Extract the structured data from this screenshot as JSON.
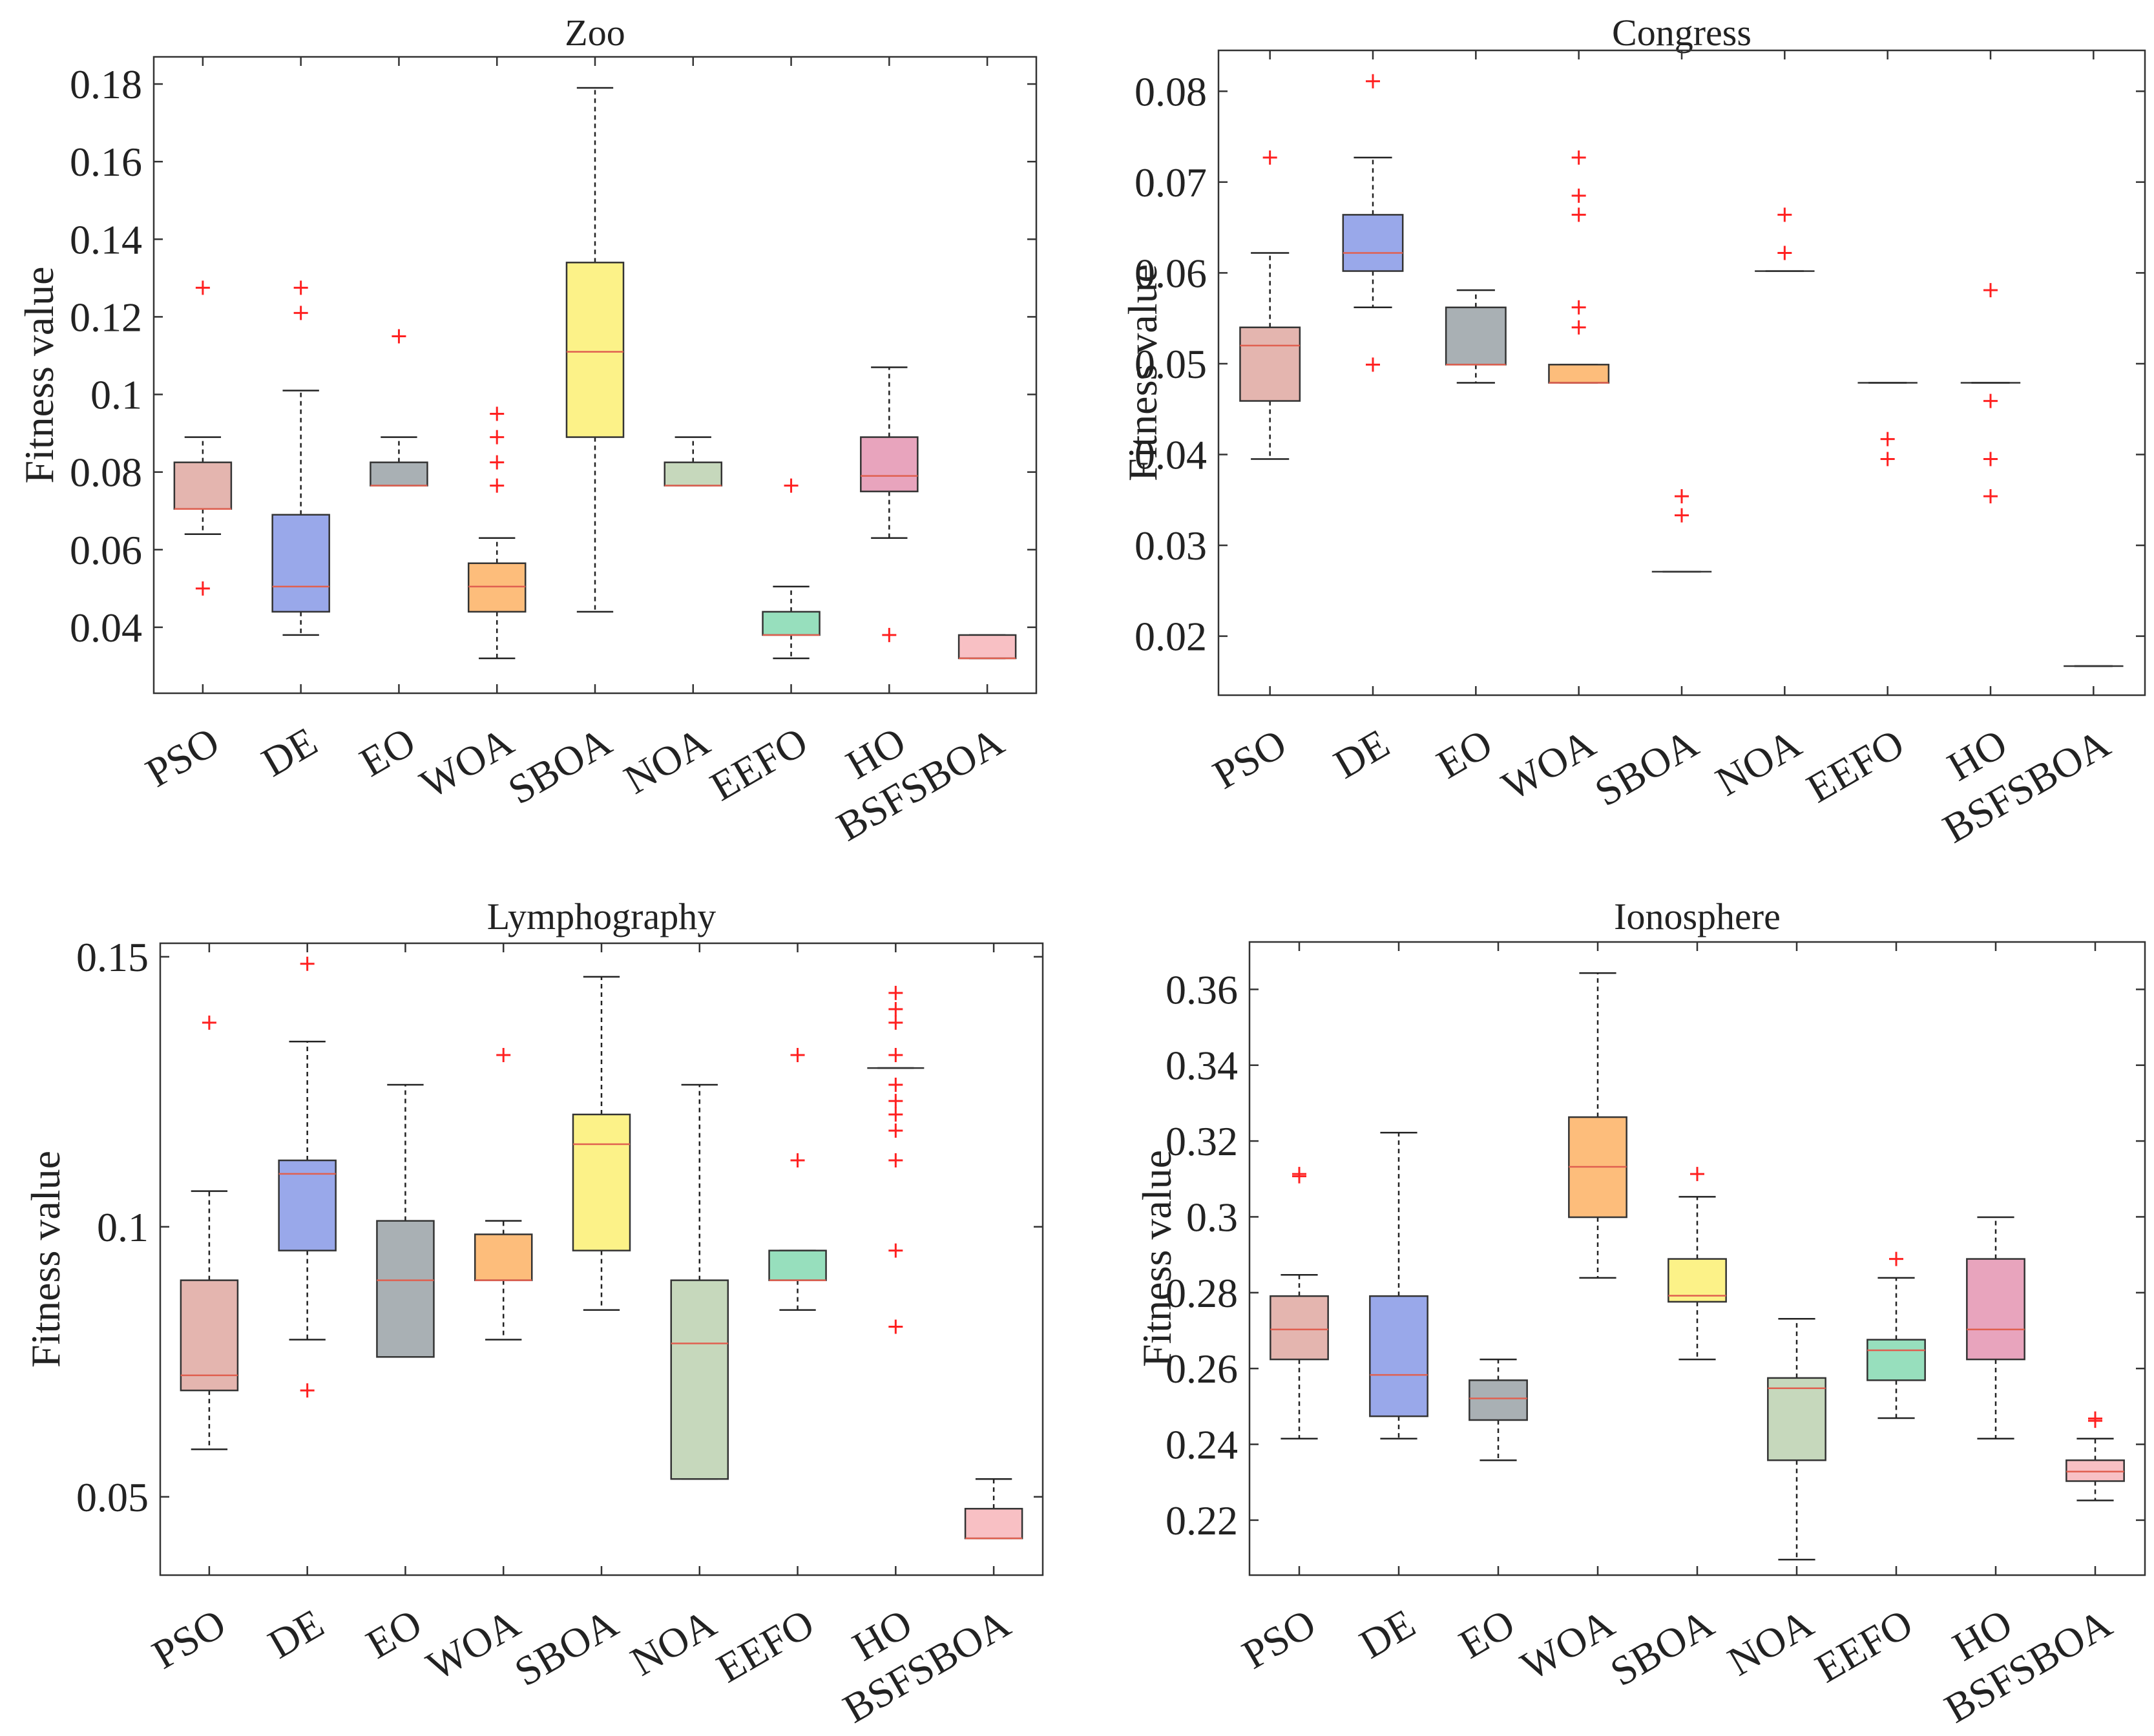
{
  "algorithms": [
    "PSO",
    "DE",
    "EO",
    "WOA",
    "SBOA",
    "NOA",
    "EEFO",
    "HO",
    "BSFSBOA"
  ],
  "colors": [
    "#e4b5af",
    "#99a8ea",
    "#a9b0b4",
    "#fdbd7b",
    "#fcf288",
    "#c6d8bc",
    "#97dfbd",
    "#e8a4bd",
    "#f8c0c4"
  ],
  "median_colors": [
    "#e06050",
    "#e06050",
    "#e06050",
    "#e06050",
    "#e06050",
    "#e06050",
    "#e06050",
    "#e06050",
    "#e06050"
  ],
  "chart_data": [
    {
      "type": "box",
      "title": "Zoo",
      "ylabel": "Fitness value",
      "ylim": [
        0.023,
        0.187
      ],
      "yticks": [
        0.04,
        0.06,
        0.08,
        0.1,
        0.12,
        0.14,
        0.16,
        0.18
      ],
      "ytick_labels": [
        "0.04",
        "0.06",
        "0.08",
        "0.1",
        "0.12",
        "0.14",
        "0.16",
        "0.18"
      ],
      "boxes": [
        {
          "name": "PSO",
          "q1": 0.0705,
          "median": 0.0705,
          "q3": 0.0825,
          "whisker_low": 0.064,
          "whisker_high": 0.089,
          "outliers": [
            0.05,
            0.1275
          ]
        },
        {
          "name": "DE",
          "q1": 0.044,
          "median": 0.0505,
          "q3": 0.069,
          "whisker_low": 0.038,
          "whisker_high": 0.101,
          "outliers": [
            0.121,
            0.1275
          ]
        },
        {
          "name": "EO",
          "q1": 0.0765,
          "median": 0.0765,
          "q3": 0.0825,
          "whisker_low": 0.0765,
          "whisker_high": 0.089,
          "outliers": [
            0.115
          ]
        },
        {
          "name": "WOA",
          "q1": 0.044,
          "median": 0.0505,
          "q3": 0.0565,
          "whisker_low": 0.032,
          "whisker_high": 0.063,
          "outliers": [
            0.0765,
            0.0825,
            0.089,
            0.095
          ]
        },
        {
          "name": "SBOA",
          "q1": 0.089,
          "median": 0.111,
          "q3": 0.134,
          "whisker_low": 0.044,
          "whisker_high": 0.179,
          "outliers": []
        },
        {
          "name": "NOA",
          "q1": 0.0765,
          "median": 0.0765,
          "q3": 0.0825,
          "whisker_low": 0.0765,
          "whisker_high": 0.089,
          "outliers": []
        },
        {
          "name": "EEFO",
          "q1": 0.038,
          "median": 0.038,
          "q3": 0.044,
          "whisker_low": 0.032,
          "whisker_high": 0.0505,
          "outliers": [
            0.0765
          ]
        },
        {
          "name": "HO",
          "q1": 0.075,
          "median": 0.079,
          "q3": 0.089,
          "whisker_low": 0.063,
          "whisker_high": 0.107,
          "outliers": [
            0.038
          ]
        },
        {
          "name": "BSFSBOA",
          "q1": 0.032,
          "median": 0.032,
          "q3": 0.038,
          "whisker_low": 0.032,
          "whisker_high": 0.038,
          "outliers": []
        }
      ]
    },
    {
      "type": "box",
      "title": "Congress",
      "ylabel": "Fitness value",
      "ylim": [
        0.0135,
        0.0845
      ],
      "yticks": [
        0.02,
        0.03,
        0.04,
        0.05,
        0.06,
        0.07,
        0.08
      ],
      "ytick_labels": [
        "0.02",
        "0.03",
        "0.04",
        "0.05",
        "0.06",
        "0.07",
        "0.08"
      ],
      "boxes": [
        {
          "name": "PSO",
          "q1": 0.0459,
          "median": 0.052,
          "q3": 0.054,
          "whisker_low": 0.0395,
          "whisker_high": 0.0622,
          "outliers": [
            0.0727
          ]
        },
        {
          "name": "DE",
          "q1": 0.0602,
          "median": 0.0622,
          "q3": 0.0664,
          "whisker_low": 0.0562,
          "whisker_high": 0.0727,
          "outliers": [
            0.0499,
            0.0811
          ]
        },
        {
          "name": "EO",
          "q1": 0.0499,
          "median": 0.0499,
          "q3": 0.0562,
          "whisker_low": 0.0479,
          "whisker_high": 0.0581,
          "outliers": []
        },
        {
          "name": "WOA",
          "q1": 0.0479,
          "median": 0.0479,
          "q3": 0.0499,
          "whisker_low": 0.0479,
          "whisker_high": 0.0499,
          "outliers": [
            0.054,
            0.0562,
            0.0664,
            0.0685,
            0.0727
          ]
        },
        {
          "name": "SBOA",
          "q1": 0.0271,
          "median": 0.0271,
          "q3": 0.0271,
          "whisker_low": 0.0271,
          "whisker_high": 0.0271,
          "outliers": [
            0.0333,
            0.0354
          ]
        },
        {
          "name": "NOA",
          "q1": 0.0602,
          "median": 0.0602,
          "q3": 0.0602,
          "whisker_low": 0.0602,
          "whisker_high": 0.0602,
          "outliers": [
            0.0622,
            0.0664
          ]
        },
        {
          "name": "EEFO",
          "q1": 0.0479,
          "median": 0.0479,
          "q3": 0.0479,
          "whisker_low": 0.0479,
          "whisker_high": 0.0479,
          "outliers": [
            0.0395,
            0.0417
          ]
        },
        {
          "name": "HO",
          "q1": 0.0479,
          "median": 0.0479,
          "q3": 0.0479,
          "whisker_low": 0.0479,
          "whisker_high": 0.0479,
          "outliers": [
            0.0354,
            0.0395,
            0.0459,
            0.0581
          ]
        },
        {
          "name": "BSFSBOA",
          "q1": 0.0167,
          "median": 0.0167,
          "q3": 0.0167,
          "whisker_low": 0.0167,
          "whisker_high": 0.0167,
          "outliers": []
        }
      ]
    },
    {
      "type": "box",
      "title": "Lymphography",
      "ylabel": "Fitness value",
      "ylim": [
        0.0355,
        0.1525
      ],
      "yticks": [
        0.05,
        0.1,
        0.15
      ],
      "ytick_labels": [
        "0.05",
        "0.1",
        "0.15"
      ],
      "boxes": [
        {
          "name": "PSO",
          "q1": 0.0697,
          "median": 0.0725,
          "q3": 0.0901,
          "whisker_low": 0.0588,
          "whisker_high": 0.1066,
          "outliers": [
            0.1378
          ]
        },
        {
          "name": "DE",
          "q1": 0.0956,
          "median": 0.1098,
          "q3": 0.1123,
          "whisker_low": 0.0791,
          "whisker_high": 0.1343,
          "outliers": [
            0.0697,
            0.1487
          ]
        },
        {
          "name": "EO",
          "q1": 0.0759,
          "median": 0.0901,
          "q3": 0.1011,
          "whisker_low": 0.0759,
          "whisker_high": 0.1263,
          "outliers": []
        },
        {
          "name": "WOA",
          "q1": 0.0901,
          "median": 0.0901,
          "q3": 0.0986,
          "whisker_low": 0.0791,
          "whisker_high": 0.1011,
          "outliers": [
            0.1318
          ]
        },
        {
          "name": "SBOA",
          "q1": 0.0956,
          "median": 0.1153,
          "q3": 0.1208,
          "whisker_low": 0.0846,
          "whisker_high": 0.1463,
          "outliers": []
        },
        {
          "name": "NOA",
          "q1": 0.0533,
          "median": 0.0784,
          "q3": 0.0901,
          "whisker_low": 0.0533,
          "whisker_high": 0.1263,
          "outliers": []
        },
        {
          "name": "EEFO",
          "q1": 0.0901,
          "median": 0.0901,
          "q3": 0.0956,
          "whisker_low": 0.0846,
          "whisker_high": 0.0956,
          "outliers": [
            0.1123,
            0.1318
          ]
        },
        {
          "name": "HO",
          "q1": 0.1294,
          "median": 0.1294,
          "q3": 0.1294,
          "whisker_low": 0.1294,
          "whisker_high": 0.1294,
          "outliers": [
            0.0815,
            0.0956,
            0.1123,
            0.1178,
            0.1208,
            0.1233,
            0.1263,
            0.1318,
            0.1378,
            0.1403,
            0.1433
          ]
        },
        {
          "name": "BSFSBOA",
          "q1": 0.0423,
          "median": 0.0423,
          "q3": 0.0478,
          "whisker_low": 0.0423,
          "whisker_high": 0.0533,
          "outliers": []
        }
      ]
    },
    {
      "type": "box",
      "title": "Ionosphere",
      "ylabel": "Fitness value",
      "ylim": [
        0.2055,
        0.3725
      ],
      "yticks": [
        0.22,
        0.24,
        0.26,
        0.28,
        0.3,
        0.32,
        0.34,
        0.36
      ],
      "ytick_labels": [
        "0.22",
        "0.24",
        "0.26",
        "0.28",
        "0.3",
        "0.32",
        "0.34",
        "0.36"
      ],
      "boxes": [
        {
          "name": "PSO",
          "q1": 0.2624,
          "median": 0.2703,
          "q3": 0.2791,
          "whisker_low": 0.2415,
          "whisker_high": 0.2847,
          "outliers": [
            0.3107,
            0.3113
          ]
        },
        {
          "name": "DE",
          "q1": 0.2474,
          "median": 0.2583,
          "q3": 0.2791,
          "whisker_low": 0.2415,
          "whisker_high": 0.3222,
          "outliers": []
        },
        {
          "name": "EO",
          "q1": 0.2464,
          "median": 0.2521,
          "q3": 0.2569,
          "whisker_low": 0.2358,
          "whisker_high": 0.2624,
          "outliers": []
        },
        {
          "name": "WOA",
          "q1": 0.2999,
          "median": 0.3132,
          "q3": 0.3263,
          "whisker_low": 0.2839,
          "whisker_high": 0.3643,
          "outliers": []
        },
        {
          "name": "SBOA",
          "q1": 0.2776,
          "median": 0.2792,
          "q3": 0.2889,
          "whisker_low": 0.2624,
          "whisker_high": 0.3053,
          "outliers": [
            0.3113
          ]
        },
        {
          "name": "NOA",
          "q1": 0.2358,
          "median": 0.2548,
          "q3": 0.2575,
          "whisker_low": 0.2096,
          "whisker_high": 0.2731,
          "outliers": []
        },
        {
          "name": "EEFO",
          "q1": 0.2569,
          "median": 0.2648,
          "q3": 0.2676,
          "whisker_low": 0.2469,
          "whisker_high": 0.2839,
          "outliers": [
            0.2889
          ]
        },
        {
          "name": "HO",
          "q1": 0.2624,
          "median": 0.2703,
          "q3": 0.2889,
          "whisker_low": 0.2415,
          "whisker_high": 0.2999,
          "outliers": []
        },
        {
          "name": "BSFSBOA",
          "q1": 0.2303,
          "median": 0.2328,
          "q3": 0.2358,
          "whisker_low": 0.2252,
          "whisker_high": 0.2415,
          "outliers": [
            0.2462,
            0.2468
          ]
        }
      ]
    }
  ]
}
